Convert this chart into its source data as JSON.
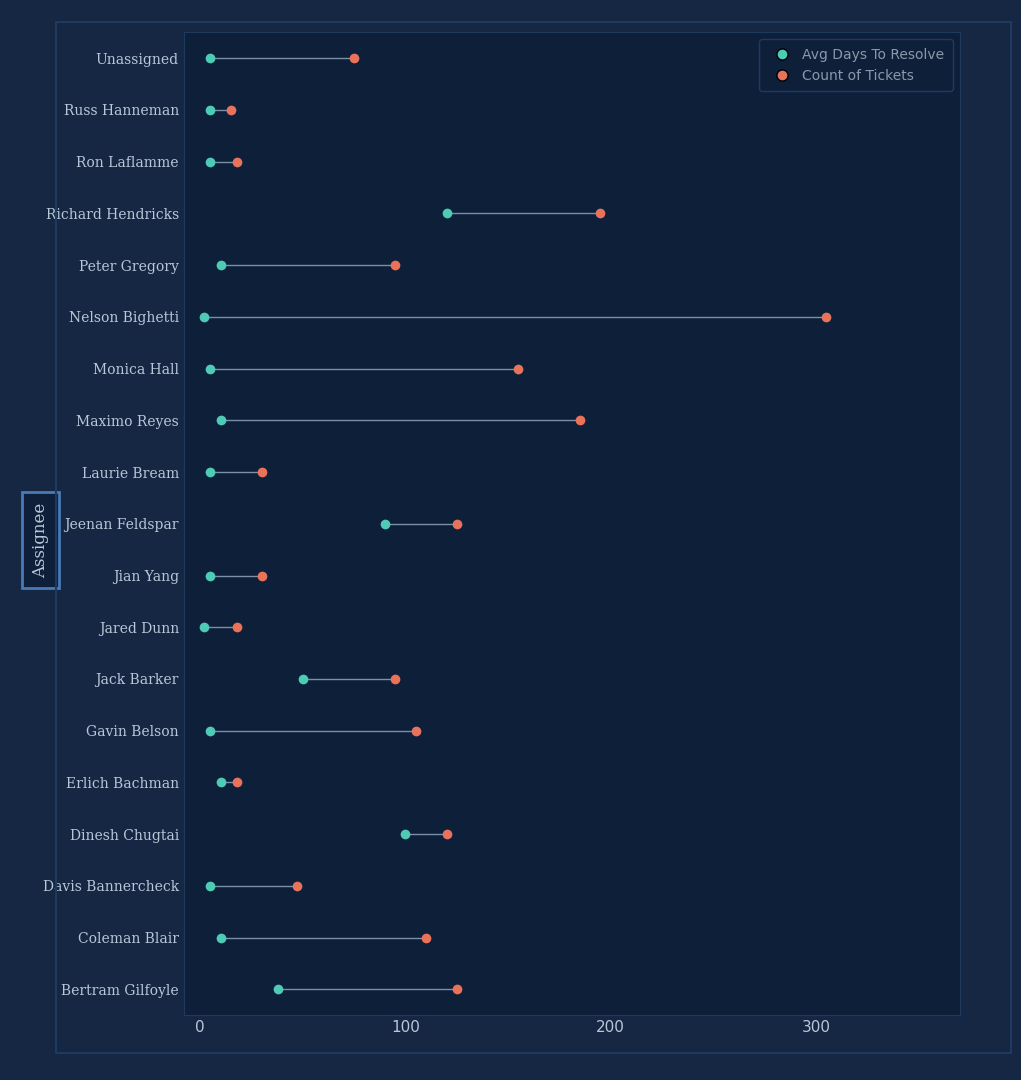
{
  "categories": [
    "Unassigned",
    "Russ Hanneman",
    "Ron Laflamme",
    "Richard Hendricks",
    "Peter Gregory",
    "Nelson Bighetti",
    "Monica Hall",
    "Maximo Reyes",
    "Laurie Bream",
    "Jeenan Feldspar",
    "Jian Yang",
    "Jared Dunn",
    "Jack Barker",
    "Gavin Belson",
    "Erlich Bachman",
    "Dinesh Chugtai",
    "Davis Bannercheck",
    "Coleman Blair",
    "Bertram Gilfoyle"
  ],
  "avg_days": [
    5,
    5,
    5,
    120,
    10,
    2,
    5,
    10,
    5,
    90,
    5,
    2,
    50,
    5,
    10,
    100,
    5,
    10,
    38
  ],
  "count_tickets": [
    75,
    15,
    18,
    195,
    95,
    305,
    155,
    185,
    30,
    125,
    30,
    18,
    95,
    105,
    18,
    120,
    47,
    110,
    125
  ],
  "outer_bg_color": "#162744",
  "frame_color": "#1e3a5f",
  "bg_color": "#0e1f3a",
  "line_color": "#7a8fa8",
  "cyan_color": "#4ecbb5",
  "red_color": "#e8735a",
  "text_color": "#b8c8d8",
  "label_color": "#8899aa",
  "tick_color": "#b8c8d8",
  "xlim": [
    -8,
    370
  ],
  "xticks": [
    0,
    100,
    200,
    300
  ],
  "legend_labels": [
    "Avg Days To Resolve",
    "Count of Tickets"
  ],
  "ylabel": "Assignee",
  "marker_size": 7,
  "figsize": [
    10.21,
    10.8
  ],
  "dpi": 100,
  "assignee_box_color": "#1e4a8a",
  "assignee_box_edge": "#4a7ab5"
}
